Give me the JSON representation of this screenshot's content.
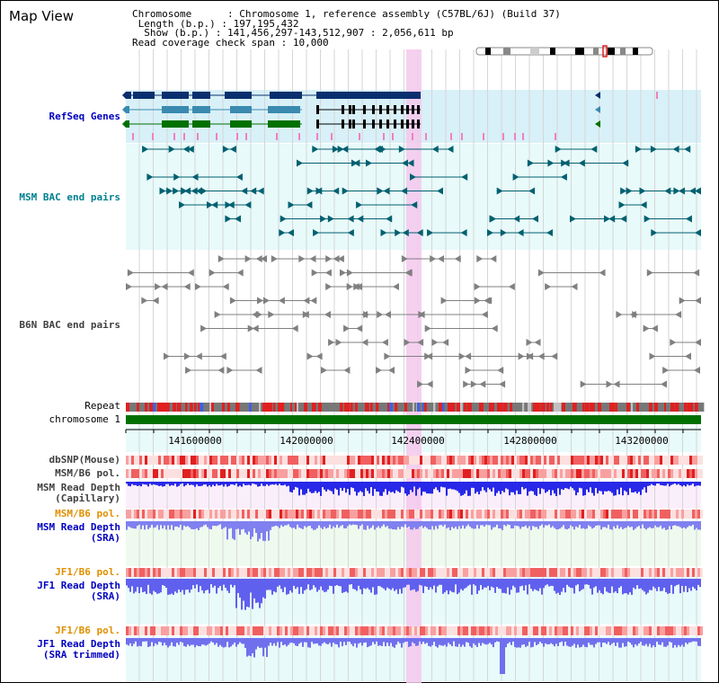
{
  "title": "Map View",
  "info": {
    "chromosome_key": "Chromosome",
    "chromosome_val": "Chromosome 1, reference assembly (C57BL/6J) (Build 37)",
    "length_key": "Length (b.p.)",
    "length_val": "197,195,432",
    "show_key": "Show (b.p.)",
    "show_val": "141,456,297-143,512,907 : 2,056,611 bp",
    "coverage_key": "Read coverage check span",
    "coverage_val": "10,000"
  },
  "tracks": {
    "refseq": "RefSeq Genes",
    "msm_bac": "MSM BAC end pairs",
    "b6n_bac": "B6N BAC end pairs",
    "repeat": "Repeat",
    "chromosome": "chromosome 1",
    "dbsnp": "dbSNP(Mouse)",
    "msm_pol1": "MSM/B6 pol.",
    "msm_depth_cap_1": "MSM Read Depth",
    "msm_depth_cap_2": "(Capillary)",
    "msm_pol2": "MSM/B6 pol.",
    "msm_depth_sra_1": "MSM Read Depth",
    "msm_depth_sra_2": "(SRA)",
    "jf1_pol1": "JF1/B6 pol.",
    "jf1_depth_1": "JF1 Read Depth",
    "jf1_depth_2": "(SRA)",
    "jf1_pol2": "JF1/B6 pol.",
    "jf1_trim_1": "JF1 Read Depth",
    "jf1_trim_2": "(SRA trimmed)"
  },
  "ruler": {
    "ticks": [
      "141600000",
      "142000000",
      "142400000",
      "142800000",
      "143200000"
    ]
  },
  "colors": {
    "navy": "#0a2f6e",
    "teal": "#3a8ab0",
    "green": "#007000",
    "msm_color": "#006070",
    "gray": "#808080",
    "highlight": "#f5c8ec",
    "light_blue": "#d8f0f8",
    "light_cyan": "#e8fafa",
    "red": "#e02020",
    "pink": "#f8a0a0",
    "blue": "#2020e0",
    "lavender": "#7070ee",
    "label_blue": "#0000c0",
    "label_teal": "#008090",
    "label_orange": "#e09000",
    "label_gray": "#404040"
  }
}
